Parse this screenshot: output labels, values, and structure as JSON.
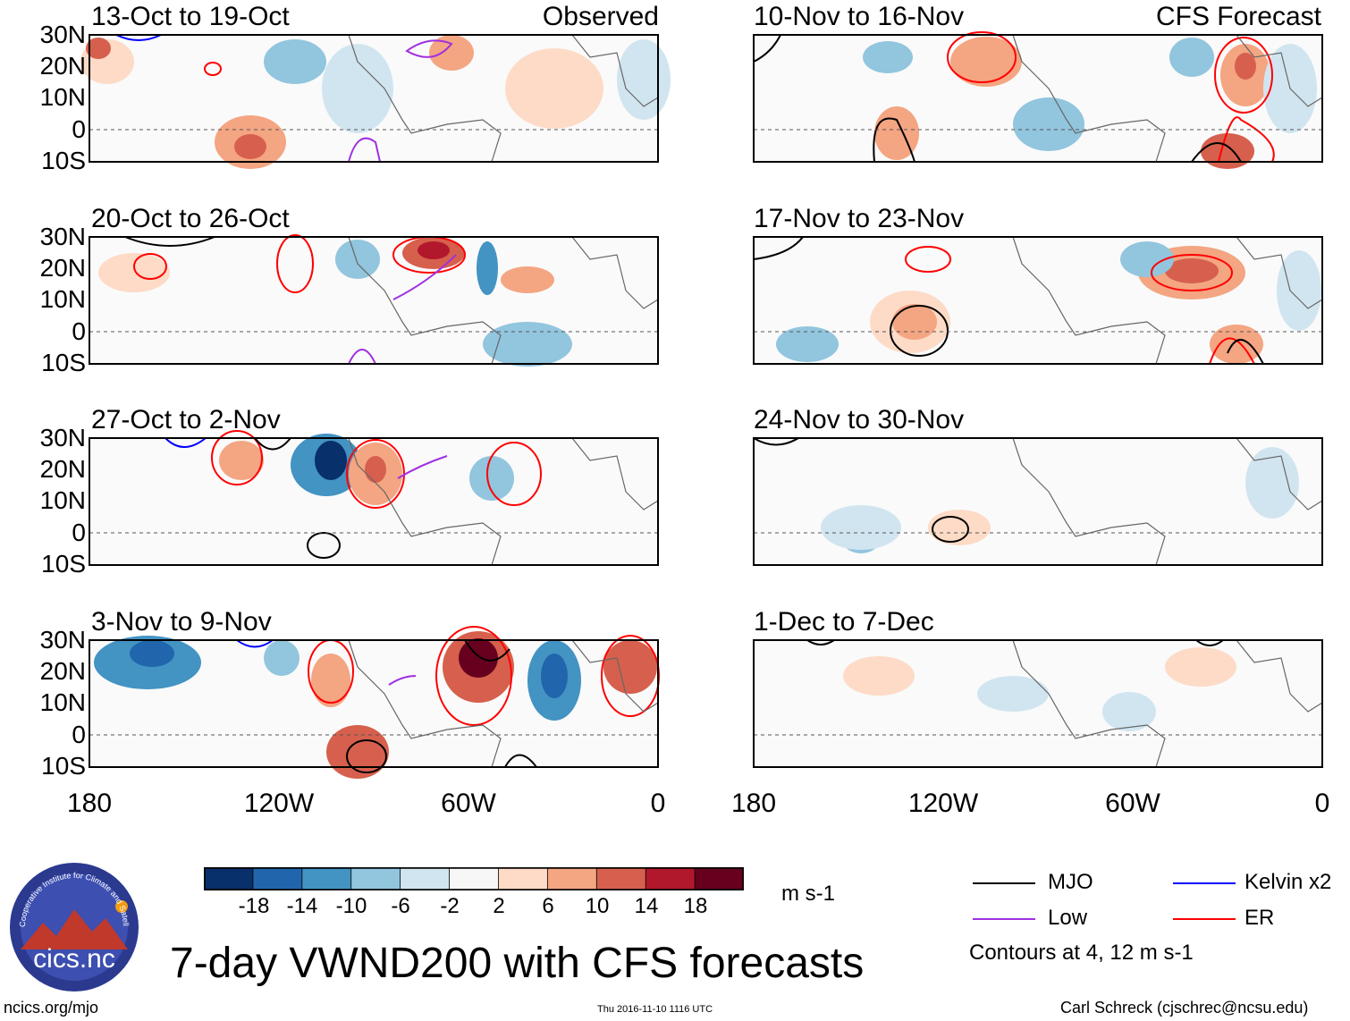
{
  "figure": {
    "title": "7-day VWND200 with CFS forecasts",
    "left_label": "Observed",
    "right_label": "CFS Forecast",
    "website": "ncics.org/mjo",
    "timestamp": "Thu 2016-11-10 1116 UTC",
    "author": "Carl Schreck (cjschrec@ncsu.edu)",
    "logo": {
      "text": "cics.nc",
      "ring_text": "Cooperative Institute for Climate and Satellites"
    }
  },
  "chart_data": {
    "type": "heatmap",
    "variable": "200-hPa meridional wind anomaly (7-day mean)",
    "units": "m s-1",
    "lat_labels": [
      "30N",
      "20N",
      "10N",
      "0",
      "10S"
    ],
    "lat_range": [
      -10,
      30
    ],
    "lon_labels": [
      "180",
      "120W",
      "60W",
      "0"
    ],
    "lon_range": [
      -180,
      0
    ],
    "panels": [
      {
        "period": "13-Oct to 19-Oct",
        "source": "Observed"
      },
      {
        "period": "20-Oct to 26-Oct",
        "source": "Observed"
      },
      {
        "period": "27-Oct to 2-Nov",
        "source": "Observed"
      },
      {
        "period": "3-Nov to 9-Nov",
        "source": "Observed"
      },
      {
        "period": "10-Nov to 16-Nov",
        "source": "CFS Forecast"
      },
      {
        "period": "17-Nov to 23-Nov",
        "source": "CFS Forecast"
      },
      {
        "period": "24-Nov to 30-Nov",
        "source": "CFS Forecast"
      },
      {
        "period": "1-Dec to 7-Dec",
        "source": "CFS Forecast"
      }
    ],
    "colorbar": {
      "labels": [
        "-18",
        "-14",
        "-10",
        "-6",
        "-2",
        "2",
        "6",
        "10",
        "14",
        "18"
      ],
      "colors": [
        "#08306b",
        "#2166ac",
        "#4393c3",
        "#92c5de",
        "#d1e5f0",
        "#f7f7f7",
        "#fddbc7",
        "#f4a582",
        "#d6604d",
        "#b2182b",
        "#67001f"
      ],
      "units": "m s-1"
    },
    "legend": [
      {
        "label": "MJO",
        "color": "#000000"
      },
      {
        "label": "Kelvin x2",
        "color": "#0000ff"
      },
      {
        "label": "Low",
        "color": "#a030e0"
      },
      {
        "label": "ER",
        "color": "#ff0000"
      }
    ],
    "contour_note": "Contours at 4, 12 m s-1"
  }
}
